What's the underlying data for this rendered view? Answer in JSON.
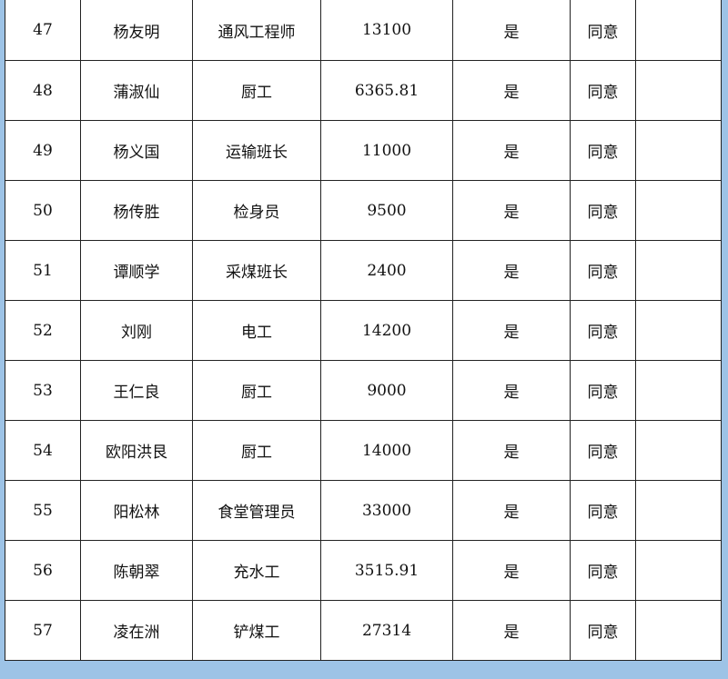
{
  "rows": [
    [
      "47",
      "杨友明",
      "通风工程师",
      "13100",
      "是",
      "同意",
      ""
    ],
    [
      "48",
      "蒲淑仙",
      "厨工",
      "6365.81",
      "是",
      "同意",
      ""
    ],
    [
      "49",
      "杨义国",
      "运输班长",
      "11000",
      "是",
      "同意",
      ""
    ],
    [
      "50",
      "杨传胜",
      "检身员",
      "9500",
      "是",
      "同意",
      ""
    ],
    [
      "51",
      "谭顺学",
      "采煤班长",
      "2400",
      "是",
      "同意",
      ""
    ],
    [
      "52",
      "刘刚",
      "电工",
      "14200",
      "是",
      "同意",
      ""
    ],
    [
      "53",
      "王仁良",
      "厨工",
      "9000",
      "是",
      "同意",
      ""
    ],
    [
      "54",
      "欧阳洪艮",
      "厨工",
      "14000",
      "是",
      "同意",
      ""
    ],
    [
      "55",
      "阳松林",
      "食堂管理员",
      "33000",
      "是",
      "同意",
      ""
    ],
    [
      "56",
      "陈朝翠",
      "充水工",
      "3515.91",
      "是",
      "同意",
      ""
    ],
    [
      "57",
      "凌在洲",
      "铲煤工",
      "27314",
      "是",
      "同意",
      ""
    ]
  ]
}
